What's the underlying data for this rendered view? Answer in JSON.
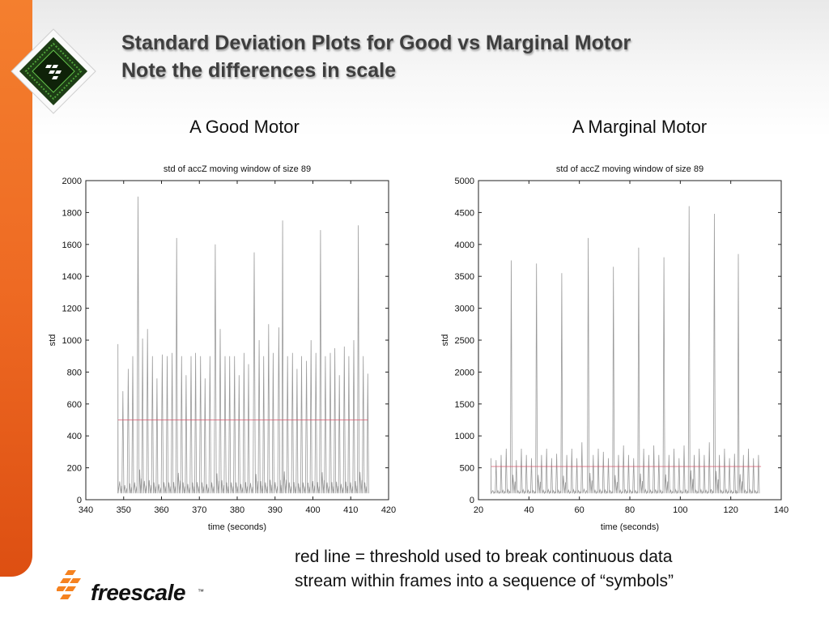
{
  "slide": {
    "title_line1": "Standard Deviation Plots for Good vs Marginal Motor",
    "title_line2": "Note the differences  in scale",
    "note_line1": "red line = threshold used to break continuous data",
    "note_line2": "stream within frames into a sequence of “symbols”",
    "brand": "freescale",
    "brand_tm": "™"
  },
  "colors": {
    "accent_orange": "#f47f2e",
    "trace": "#9a9a9a",
    "threshold": "#d9566b"
  },
  "chart_data": [
    {
      "type": "line",
      "heading": "A Good Motor",
      "title": "std of accZ moving window of size 89",
      "xlabel": "time (seconds)",
      "ylabel": "std",
      "xlim": [
        340,
        420
      ],
      "ylim": [
        0,
        2000
      ],
      "xticks": [
        340,
        350,
        360,
        370,
        380,
        390,
        400,
        410,
        420
      ],
      "yticks": [
        0,
        200,
        400,
        600,
        800,
        1000,
        1200,
        1400,
        1600,
        1800,
        2000
      ],
      "series": [
        {
          "role": "std trace",
          "baseline": 40,
          "x_start": 348.5,
          "x_end": 414.5,
          "spikes": [
            [
              348.5,
              975
            ],
            [
              349.8,
              680
            ],
            [
              351.2,
              820
            ],
            [
              352.4,
              900
            ],
            [
              353.8,
              1900
            ],
            [
              355.0,
              1010
            ],
            [
              356.3,
              1070
            ],
            [
              357.6,
              900
            ],
            [
              358.8,
              760
            ],
            [
              360.2,
              910
            ],
            [
              361.5,
              900
            ],
            [
              362.8,
              920
            ],
            [
              364.0,
              1640
            ],
            [
              365.3,
              900
            ],
            [
              366.5,
              780
            ],
            [
              367.8,
              900
            ],
            [
              369.0,
              920
            ],
            [
              370.3,
              900
            ],
            [
              371.5,
              760
            ],
            [
              372.8,
              900
            ],
            [
              374.2,
              1600
            ],
            [
              375.5,
              1070
            ],
            [
              376.8,
              900
            ],
            [
              378.0,
              900
            ],
            [
              379.3,
              900
            ],
            [
              380.5,
              780
            ],
            [
              381.8,
              920
            ],
            [
              383.0,
              850
            ],
            [
              384.5,
              1550
            ],
            [
              385.8,
              1000
            ],
            [
              387.0,
              900
            ],
            [
              388.3,
              1100
            ],
            [
              389.5,
              920
            ],
            [
              391.0,
              1080
            ],
            [
              392.0,
              1750
            ],
            [
              393.3,
              900
            ],
            [
              394.6,
              920
            ],
            [
              395.8,
              820
            ],
            [
              397.0,
              900
            ],
            [
              398.3,
              870
            ],
            [
              399.5,
              1000
            ],
            [
              400.8,
              920
            ],
            [
              402.0,
              1690
            ],
            [
              403.3,
              900
            ],
            [
              404.6,
              920
            ],
            [
              405.8,
              950
            ],
            [
              407.0,
              780
            ],
            [
              408.3,
              960
            ],
            [
              409.5,
              900
            ],
            [
              410.8,
              1000
            ],
            [
              412.0,
              1720
            ],
            [
              413.3,
              900
            ],
            [
              414.5,
              790
            ]
          ]
        },
        {
          "role": "threshold",
          "values": [
            [
              348.5,
              500
            ],
            [
              414.5,
              500
            ]
          ]
        }
      ]
    },
    {
      "type": "line",
      "heading": "A Marginal Motor",
      "title": "std of accZ moving window of size 89",
      "xlabel": "time (seconds)",
      "ylabel": "std",
      "xlim": [
        20,
        140
      ],
      "ylim": [
        0,
        5000
      ],
      "xticks": [
        20,
        40,
        60,
        80,
        100,
        120,
        140
      ],
      "yticks": [
        0,
        500,
        1000,
        1500,
        2000,
        2500,
        3000,
        3500,
        4000,
        4500,
        5000
      ],
      "series": [
        {
          "role": "std trace",
          "baseline": 100,
          "x_start": 25,
          "x_end": 132,
          "spikes": [
            [
              25.0,
              650
            ],
            [
              27.0,
              620
            ],
            [
              29.0,
              700
            ],
            [
              31.0,
              800
            ],
            [
              33.0,
              3750
            ],
            [
              35.0,
              620
            ],
            [
              37.0,
              800
            ],
            [
              39.0,
              700
            ],
            [
              41.0,
              650
            ],
            [
              43.0,
              3700
            ],
            [
              45.0,
              700
            ],
            [
              47.0,
              800
            ],
            [
              49.0,
              650
            ],
            [
              51.0,
              720
            ],
            [
              53.0,
              3550
            ],
            [
              55.0,
              700
            ],
            [
              57.0,
              800
            ],
            [
              59.0,
              650
            ],
            [
              61.0,
              900
            ],
            [
              63.5,
              4100
            ],
            [
              65.5,
              700
            ],
            [
              67.5,
              800
            ],
            [
              69.5,
              750
            ],
            [
              71.5,
              650
            ],
            [
              73.5,
              3650
            ],
            [
              75.5,
              700
            ],
            [
              77.5,
              850
            ],
            [
              79.5,
              700
            ],
            [
              81.5,
              650
            ],
            [
              83.5,
              3950
            ],
            [
              85.5,
              800
            ],
            [
              87.5,
              700
            ],
            [
              89.5,
              850
            ],
            [
              91.5,
              700
            ],
            [
              93.5,
              3800
            ],
            [
              95.5,
              700
            ],
            [
              97.5,
              800
            ],
            [
              99.5,
              650
            ],
            [
              101.5,
              850
            ],
            [
              103.5,
              4600
            ],
            [
              105.5,
              700
            ],
            [
              107.5,
              800
            ],
            [
              109.5,
              700
            ],
            [
              111.5,
              900
            ],
            [
              113.5,
              4480
            ],
            [
              115.5,
              700
            ],
            [
              117.5,
              800
            ],
            [
              119.5,
              650
            ],
            [
              121.5,
              720
            ],
            [
              123.0,
              3850
            ],
            [
              125.0,
              700
            ],
            [
              127.0,
              800
            ],
            [
              129.0,
              650
            ],
            [
              131.0,
              700
            ]
          ]
        },
        {
          "role": "threshold",
          "values": [
            [
              25,
              520
            ],
            [
              132,
              520
            ]
          ]
        }
      ]
    }
  ]
}
